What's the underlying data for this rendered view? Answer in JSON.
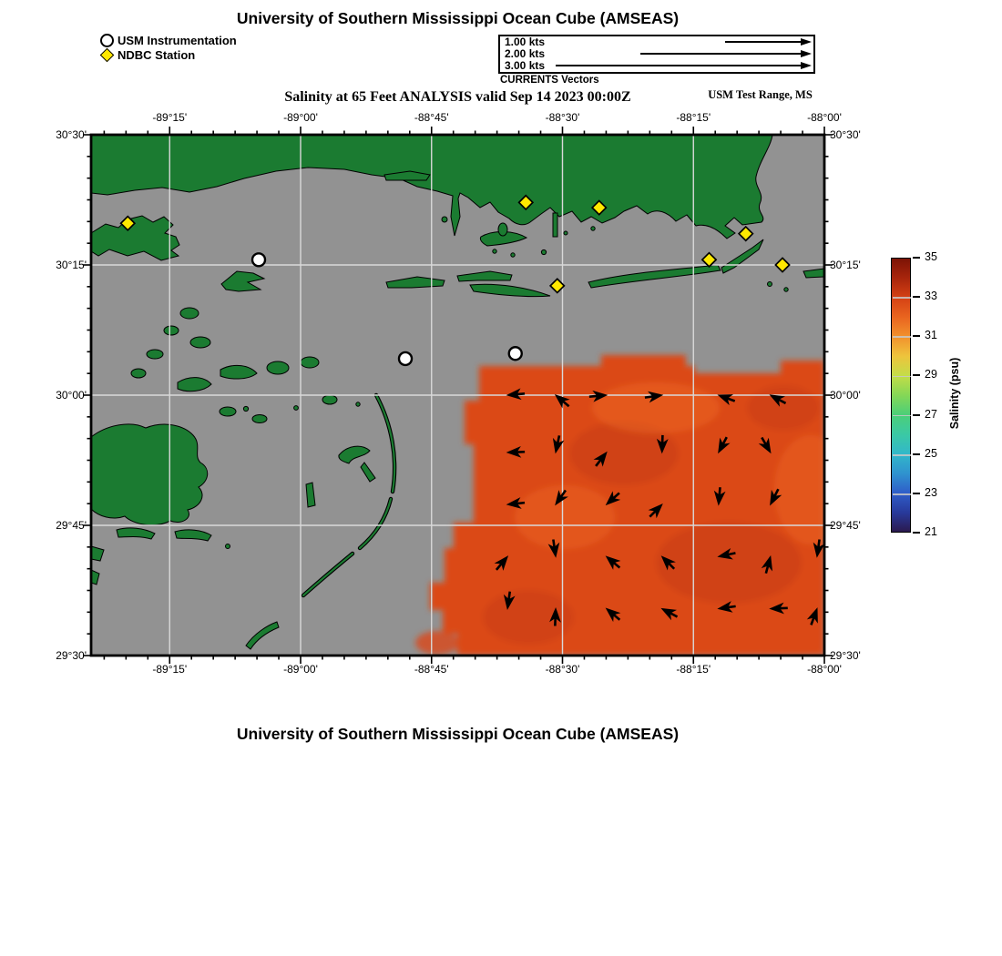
{
  "page": {
    "header_title": "University of Southern Mississippi Ocean Cube (AMSEAS)",
    "marker_legend": [
      {
        "marker": "circle",
        "label": "USM Instrumentation"
      },
      {
        "marker": "diamond",
        "label": "NDBC Station"
      }
    ],
    "currents_legend": {
      "caption": "CURRENTS Vectors",
      "items": [
        {
          "label": "1.00 kts"
        },
        {
          "label": "2.00 kts"
        },
        {
          "label": "3.00 kts"
        }
      ]
    },
    "subtitle": "Salinity at 65 Feet ANALYSIS valid Sep 14 2023 00:00Z",
    "region_label": "USM Test Range, MS",
    "footer_title": "University of Southern Mississippi Ocean Cube (AMSEAS)"
  },
  "chart_data": {
    "type": "heatmap",
    "title": "Salinity at 65 Feet ANALYSIS valid Sep 14 2023 00:00Z",
    "variable": "Salinity (psu)",
    "depth": "65 Feet",
    "valid_time": "Sep 14 2023 00:00Z",
    "x_axis": {
      "label_format": "longitude",
      "min": -89.4,
      "max": -88.0,
      "minor_tick_minutes": 2.5,
      "ticks": [
        {
          "value": -89.25,
          "label": "-89°15'"
        },
        {
          "value": -89.0,
          "label": "-89°00'"
        },
        {
          "value": -88.75,
          "label": "-88°45'"
        },
        {
          "value": -88.5,
          "label": "-88°30'"
        },
        {
          "value": -88.25,
          "label": "-88°15'"
        },
        {
          "value": -88.0,
          "label": "-88°00'"
        }
      ]
    },
    "y_axis": {
      "label_format": "latitude",
      "min": 29.5,
      "max": 30.5,
      "minor_tick_minutes": 2.5,
      "ticks": [
        {
          "value": 30.5,
          "label": "30°30'"
        },
        {
          "value": 30.25,
          "label": "30°15'"
        },
        {
          "value": 30.0,
          "label": "30°00'"
        },
        {
          "value": 29.75,
          "label": "29°45'"
        },
        {
          "value": 29.5,
          "label": "29°30'"
        }
      ]
    },
    "grid": true,
    "colorbar": {
      "label": "Salinity (psu)",
      "min": 21,
      "max": 35,
      "ticks": [
        21,
        23,
        25,
        27,
        29,
        31,
        33,
        35
      ],
      "stops": [
        {
          "v": 21,
          "c": "#2b1a4f"
        },
        {
          "v": 22,
          "c": "#283a9c"
        },
        {
          "v": 23,
          "c": "#2f5ec9"
        },
        {
          "v": 24,
          "c": "#2f93cf"
        },
        {
          "v": 25,
          "c": "#32b8c9"
        },
        {
          "v": 26,
          "c": "#3bc9a4"
        },
        {
          "v": 27,
          "c": "#4ccf78"
        },
        {
          "v": 28,
          "c": "#85d756"
        },
        {
          "v": 29,
          "c": "#c3dd48"
        },
        {
          "v": 30,
          "c": "#eec43c"
        },
        {
          "v": 31,
          "c": "#f2912d"
        },
        {
          "v": 32,
          "c": "#e9641f"
        },
        {
          "v": 33,
          "c": "#d44114"
        },
        {
          "v": 34,
          "c": "#a8250c"
        },
        {
          "v": 35,
          "c": "#7c1305"
        }
      ]
    },
    "field": {
      "description": "Salinity plume of about 31-32 psu covering the southeast quadrant (roughly east of 88°37'W and south of 30°01'N); all other water area is masked gray (no data), land is green",
      "approx_value_psu": 31.5
    },
    "stations": {
      "usm_instrumentation": [
        {
          "lon": -89.08,
          "lat": 30.26
        },
        {
          "lon": -88.8,
          "lat": 30.07
        },
        {
          "lon": -88.59,
          "lat": 30.08
        }
      ],
      "ndbc_stations": [
        {
          "lon": -89.33,
          "lat": 30.33
        },
        {
          "lon": -88.57,
          "lat": 30.37
        },
        {
          "lon": -88.43,
          "lat": 30.36
        },
        {
          "lon": -88.15,
          "lat": 30.31
        },
        {
          "lon": -88.22,
          "lat": 30.26
        },
        {
          "lon": -88.08,
          "lat": 30.25
        },
        {
          "lon": -88.51,
          "lat": 30.21
        }
      ]
    },
    "currents": {
      "units": "kts",
      "legend_speeds": [
        1.0,
        2.0,
        3.0
      ],
      "vectors": [
        {
          "lon": -88.605,
          "lat": 30.0,
          "dir_deg": 185
        },
        {
          "lon": -88.513,
          "lat": 30.0,
          "dir_deg": 140
        },
        {
          "lon": -88.416,
          "lat": 30.0,
          "dir_deg": 5
        },
        {
          "lon": -88.31,
          "lat": 30.0,
          "dir_deg": 8
        },
        {
          "lon": -88.202,
          "lat": 30.0,
          "dir_deg": 160
        },
        {
          "lon": -88.103,
          "lat": 30.0,
          "dir_deg": 152
        },
        {
          "lon": -88.605,
          "lat": 29.89,
          "dir_deg": 182
        },
        {
          "lon": -88.513,
          "lat": 29.89,
          "dir_deg": 258
        },
        {
          "lon": -88.416,
          "lat": 29.89,
          "dir_deg": 52
        },
        {
          "lon": -88.31,
          "lat": 29.89,
          "dir_deg": 268
        },
        {
          "lon": -88.202,
          "lat": 29.89,
          "dir_deg": 242
        },
        {
          "lon": -88.103,
          "lat": 29.89,
          "dir_deg": 300
        },
        {
          "lon": -88.605,
          "lat": 29.79,
          "dir_deg": 186
        },
        {
          "lon": -88.513,
          "lat": 29.79,
          "dir_deg": 235
        },
        {
          "lon": -88.416,
          "lat": 29.79,
          "dir_deg": 222
        },
        {
          "lon": -88.31,
          "lat": 29.79,
          "dir_deg": 45
        },
        {
          "lon": -88.202,
          "lat": 29.79,
          "dir_deg": 265
        },
        {
          "lon": -88.103,
          "lat": 29.79,
          "dir_deg": 243
        },
        {
          "lon": -88.605,
          "lat": 29.69,
          "dir_deg": 50
        },
        {
          "lon": -88.513,
          "lat": 29.69,
          "dir_deg": 278
        },
        {
          "lon": -88.416,
          "lat": 29.69,
          "dir_deg": 140
        },
        {
          "lon": -88.31,
          "lat": 29.69,
          "dir_deg": 135
        },
        {
          "lon": -88.202,
          "lat": 29.69,
          "dir_deg": 192
        },
        {
          "lon": -88.103,
          "lat": 29.69,
          "dir_deg": 75
        },
        {
          "lon": -88.014,
          "lat": 29.69,
          "dir_deg": 262
        },
        {
          "lon": -88.605,
          "lat": 29.59,
          "dir_deg": 262
        },
        {
          "lon": -88.513,
          "lat": 29.59,
          "dir_deg": 88
        },
        {
          "lon": -88.416,
          "lat": 29.59,
          "dir_deg": 140
        },
        {
          "lon": -88.31,
          "lat": 29.59,
          "dir_deg": 152
        },
        {
          "lon": -88.202,
          "lat": 29.59,
          "dir_deg": 188
        },
        {
          "lon": -88.103,
          "lat": 29.59,
          "dir_deg": 182
        },
        {
          "lon": -88.014,
          "lat": 29.59,
          "dir_deg": 70
        }
      ]
    },
    "colors": {
      "land": "#1b7b31",
      "water": "#929292",
      "plume": "#db4918",
      "plume_dark": "#c43a10",
      "plume_light": "#ef6d26",
      "grid_line": "#d9d9d9",
      "ndbc_marker": "#ffe800",
      "usm_marker": "#ffffff",
      "vector": "#000000"
    }
  }
}
